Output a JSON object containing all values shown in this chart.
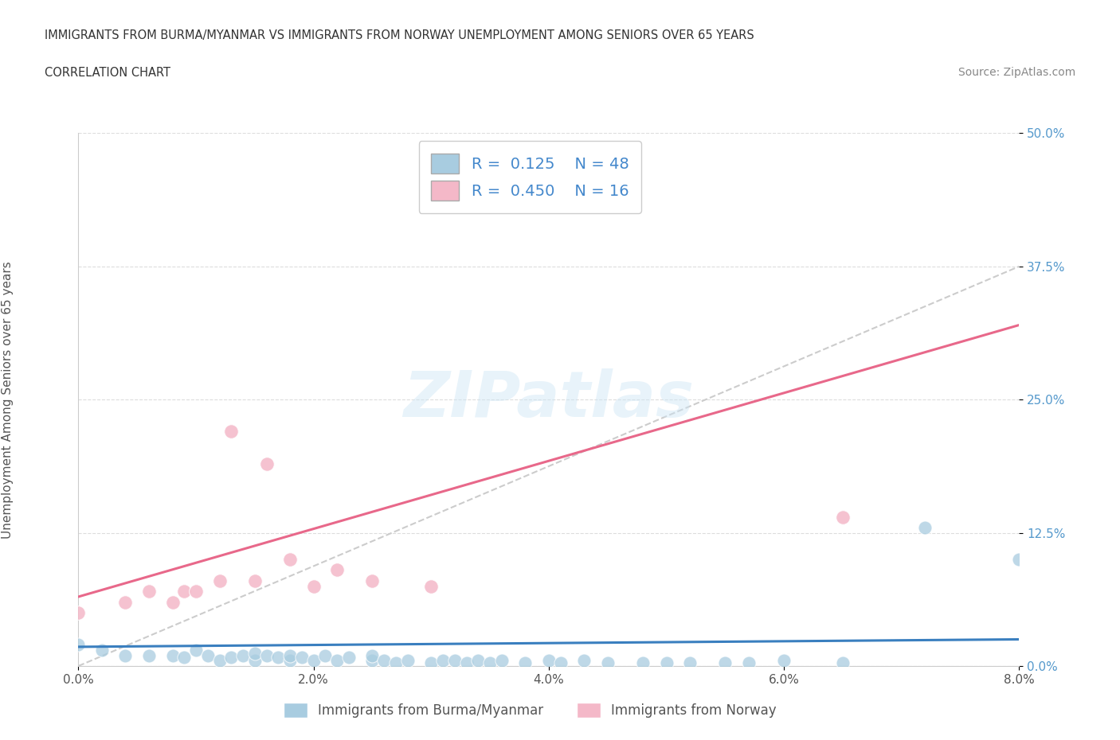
{
  "title_line1": "IMMIGRANTS FROM BURMA/MYANMAR VS IMMIGRANTS FROM NORWAY UNEMPLOYMENT AMONG SENIORS OVER 65 YEARS",
  "title_line2": "CORRELATION CHART",
  "source": "Source: ZipAtlas.com",
  "ylabel": "Unemployment Among Seniors over 65 years",
  "xlabel_ticks": [
    "0.0%",
    "2.0%",
    "4.0%",
    "6.0%",
    "8.0%"
  ],
  "ytick_vals": [
    0.0,
    0.125,
    0.25,
    0.375,
    0.5
  ],
  "ytick_labels": [
    "0.0%",
    "12.5%",
    "25.0%",
    "37.5%",
    "50.0%"
  ],
  "xtick_vals": [
    0.0,
    0.02,
    0.04,
    0.06,
    0.08
  ],
  "xlim": [
    0.0,
    0.08
  ],
  "ylim": [
    0.0,
    0.5
  ],
  "legend_r_blue": "0.125",
  "legend_n_blue": "48",
  "legend_r_pink": "0.450",
  "legend_n_pink": "16",
  "color_blue": "#a8cce0",
  "color_pink": "#f4b8c8",
  "color_blue_line": "#3a7fbf",
  "color_pink_line": "#e8688a",
  "watermark": "ZIPatlas",
  "blue_x": [
    0.0,
    0.002,
    0.004,
    0.006,
    0.008,
    0.009,
    0.01,
    0.011,
    0.012,
    0.013,
    0.014,
    0.015,
    0.015,
    0.016,
    0.017,
    0.018,
    0.018,
    0.019,
    0.02,
    0.021,
    0.022,
    0.023,
    0.025,
    0.025,
    0.026,
    0.027,
    0.028,
    0.03,
    0.031,
    0.032,
    0.033,
    0.034,
    0.035,
    0.036,
    0.038,
    0.04,
    0.041,
    0.043,
    0.045,
    0.048,
    0.05,
    0.052,
    0.055,
    0.057,
    0.06,
    0.065,
    0.072,
    0.08
  ],
  "blue_y": [
    0.02,
    0.015,
    0.01,
    0.01,
    0.01,
    0.008,
    0.015,
    0.01,
    0.005,
    0.008,
    0.01,
    0.005,
    0.012,
    0.01,
    0.008,
    0.005,
    0.01,
    0.008,
    0.005,
    0.01,
    0.005,
    0.008,
    0.005,
    0.01,
    0.005,
    0.003,
    0.005,
    0.003,
    0.005,
    0.005,
    0.003,
    0.005,
    0.003,
    0.005,
    0.003,
    0.005,
    0.003,
    0.005,
    0.003,
    0.003,
    0.003,
    0.003,
    0.003,
    0.003,
    0.005,
    0.003,
    0.13,
    0.1
  ],
  "pink_x": [
    0.0,
    0.004,
    0.006,
    0.008,
    0.009,
    0.01,
    0.012,
    0.013,
    0.015,
    0.016,
    0.018,
    0.02,
    0.022,
    0.025,
    0.03,
    0.065
  ],
  "pink_y": [
    0.05,
    0.06,
    0.07,
    0.06,
    0.07,
    0.07,
    0.08,
    0.22,
    0.08,
    0.19,
    0.1,
    0.075,
    0.09,
    0.08,
    0.075,
    0.14
  ],
  "blue_trend": [
    0.0,
    0.08,
    0.018,
    0.025
  ],
  "pink_trend": [
    0.0,
    0.08,
    0.065,
    0.32
  ],
  "dash_trend": [
    0.0,
    0.08,
    0.0,
    0.375
  ]
}
